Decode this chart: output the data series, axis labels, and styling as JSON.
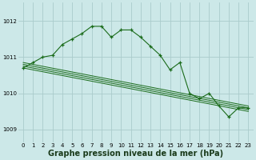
{
  "background_color": "#cce8e8",
  "grid_color": "#aacccc",
  "line_color": "#1a6b1a",
  "marker_color": "#1a6b1a",
  "xlabel": "Graphe pression niveau de la mer (hPa)",
  "xlabel_fontsize": 7.0,
  "ylabel_ticks": [
    1009,
    1010,
    1011,
    1012
  ],
  "xlim": [
    -0.5,
    23.5
  ],
  "ylim": [
    1008.65,
    1012.5
  ],
  "xticks": [
    0,
    1,
    2,
    3,
    4,
    5,
    6,
    7,
    8,
    9,
    10,
    11,
    12,
    13,
    14,
    15,
    16,
    17,
    18,
    19,
    20,
    21,
    22,
    23
  ],
  "main_x": [
    0,
    1,
    2,
    3,
    4,
    5,
    6,
    7,
    8,
    9,
    10,
    11,
    12,
    13,
    14,
    15,
    16,
    17,
    18,
    19,
    20,
    21,
    22,
    23
  ],
  "main_y": [
    1010.7,
    1010.85,
    1011.0,
    1011.05,
    1011.35,
    1011.5,
    1011.65,
    1011.85,
    1011.85,
    1011.55,
    1011.75,
    1011.75,
    1011.55,
    1011.3,
    1011.05,
    1010.65,
    1010.85,
    1010.0,
    1009.85,
    1010.0,
    1009.65,
    1009.35,
    1009.6,
    1009.6
  ],
  "smooth_lines": [
    {
      "x": [
        0,
        23
      ],
      "y": [
        1010.85,
        1009.65
      ]
    },
    {
      "x": [
        0,
        23
      ],
      "y": [
        1010.8,
        1009.6
      ]
    },
    {
      "x": [
        0,
        23
      ],
      "y": [
        1010.75,
        1009.55
      ]
    },
    {
      "x": [
        0,
        23
      ],
      "y": [
        1010.7,
        1009.5
      ]
    }
  ]
}
